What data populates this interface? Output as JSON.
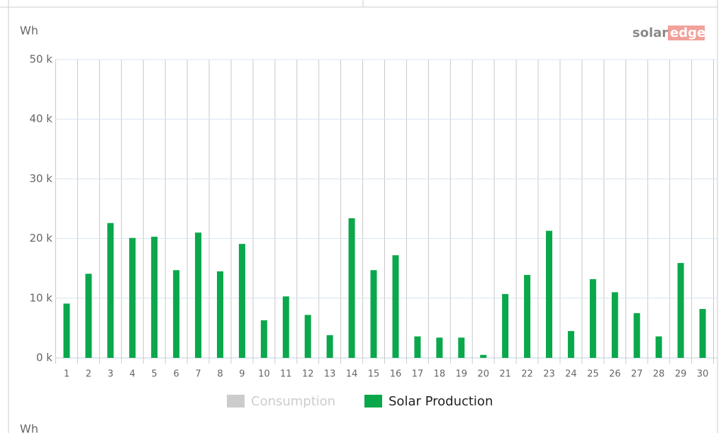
{
  "chart_data": {
    "type": "bar",
    "y_label": "Wh",
    "logo": {
      "part1": "solar",
      "part2": "edge"
    },
    "categories": [
      "1",
      "2",
      "3",
      "4",
      "5",
      "6",
      "7",
      "8",
      "9",
      "10",
      "11",
      "12",
      "13",
      "14",
      "15",
      "16",
      "17",
      "18",
      "19",
      "20",
      "21",
      "22",
      "23",
      "24",
      "25",
      "26",
      "27",
      "28",
      "29",
      "30"
    ],
    "series": [
      {
        "name": "Consumption",
        "color": "#cccccc",
        "visible": false,
        "values": [
          null,
          null,
          null,
          null,
          null,
          null,
          null,
          null,
          null,
          null,
          null,
          null,
          null,
          null,
          null,
          null,
          null,
          null,
          null,
          null,
          null,
          null,
          null,
          null,
          null,
          null,
          null,
          null,
          null,
          null
        ]
      },
      {
        "name": "Solar Production",
        "color": "#0aa84b",
        "visible": true,
        "values": [
          9100,
          14100,
          22600,
          20100,
          20300,
          14700,
          21000,
          14500,
          19100,
          6300,
          10300,
          7200,
          3800,
          23400,
          14700,
          17200,
          3600,
          3400,
          3400,
          500,
          10700,
          13900,
          21300,
          4500,
          13200,
          11000,
          7500,
          3600,
          15900,
          8200
        ]
      }
    ],
    "ylim": [
      0,
      50000
    ],
    "yticks": [
      {
        "value": 0,
        "label": "0 k"
      },
      {
        "value": 10000,
        "label": "10 k"
      },
      {
        "value": 20000,
        "label": "20 k"
      },
      {
        "value": 30000,
        "label": "30 k"
      },
      {
        "value": 40000,
        "label": "40 k"
      },
      {
        "value": 50000,
        "label": "50 k"
      }
    ],
    "grid": true
  },
  "next_chart": {
    "y_label": "Wh"
  }
}
